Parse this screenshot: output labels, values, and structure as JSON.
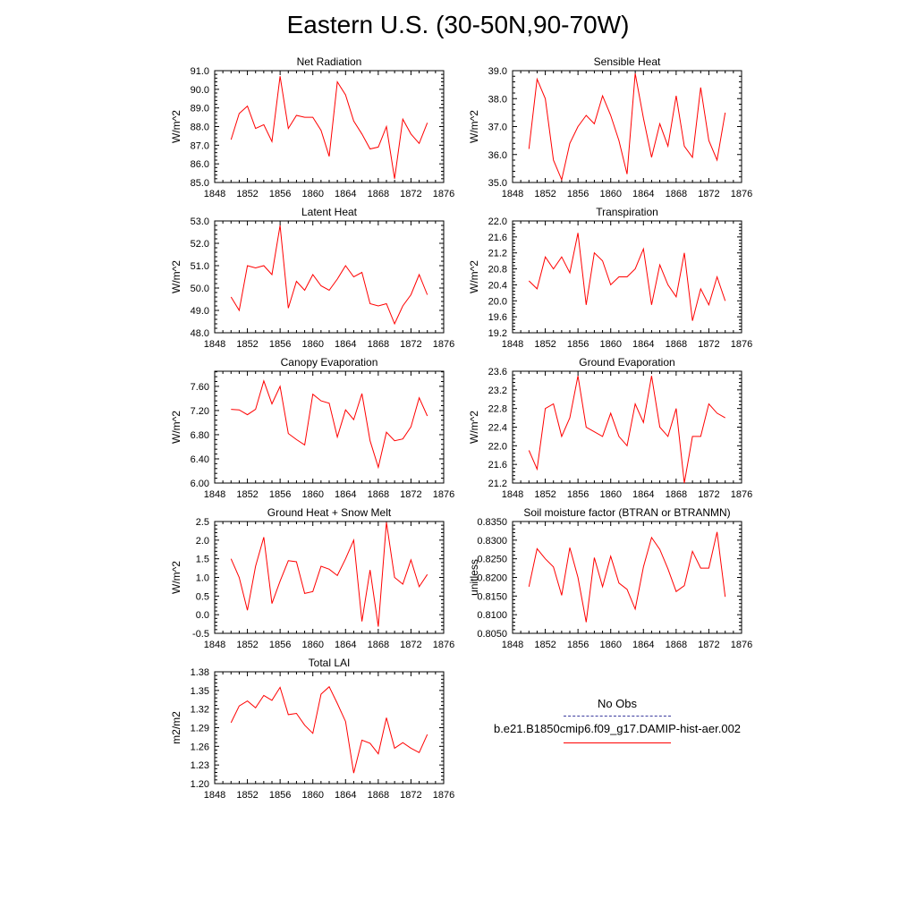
{
  "title": "Eastern U.S. (30-50N,90-70W)",
  "colors": {
    "model": "#ff0000",
    "obs": "#3b3b9e",
    "axis": "#000000"
  },
  "legend": {
    "obs_label": "No Obs",
    "model_label": "b.e21.B1850cmip6.f09_g17.DAMIP-hist-aer.002"
  },
  "chart_data": [
    {
      "type": "line",
      "title": "Net Radiation",
      "ylabel": "W/m^2",
      "xlim": [
        1848,
        1876
      ],
      "xticks": [
        "1848",
        "1852",
        "1856",
        "1860",
        "1864",
        "1868",
        "1872",
        "1876"
      ],
      "ylim": [
        85.0,
        91.0
      ],
      "yticks": [
        "85.0",
        "86.0",
        "87.0",
        "88.0",
        "89.0",
        "90.0",
        "91.0"
      ],
      "x": [
        1850,
        1851,
        1852,
        1853,
        1854,
        1855,
        1856,
        1857,
        1858,
        1859,
        1860,
        1861,
        1862,
        1863,
        1864,
        1865,
        1866,
        1867,
        1868,
        1869,
        1870,
        1871,
        1872,
        1873,
        1874
      ],
      "series": [
        {
          "values": [
            87.3,
            88.7,
            89.1,
            87.9,
            88.1,
            87.2,
            90.7,
            87.9,
            88.6,
            88.5,
            88.5,
            87.8,
            86.4,
            90.4,
            89.7,
            88.3,
            87.6,
            86.8,
            86.9,
            88.0,
            85.2,
            88.4,
            87.6,
            87.1,
            88.2
          ]
        }
      ]
    },
    {
      "type": "line",
      "title": "Sensible Heat",
      "ylabel": "W/m^2",
      "xlim": [
        1848,
        1876
      ],
      "xticks": [
        "1848",
        "1852",
        "1856",
        "1860",
        "1864",
        "1868",
        "1872",
        "1876"
      ],
      "ylim": [
        35.0,
        39.0
      ],
      "yticks": [
        "35.0",
        "36.0",
        "37.0",
        "38.0",
        "39.0"
      ],
      "x": [
        1850,
        1851,
        1852,
        1853,
        1854,
        1855,
        1856,
        1857,
        1858,
        1859,
        1860,
        1861,
        1862,
        1863,
        1864,
        1865,
        1866,
        1867,
        1868,
        1869,
        1870,
        1871,
        1872,
        1873,
        1874
      ],
      "series": [
        {
          "values": [
            36.2,
            38.7,
            38.0,
            35.8,
            35.1,
            36.4,
            37.0,
            37.4,
            37.1,
            38.1,
            37.4,
            36.5,
            35.3,
            38.9,
            37.3,
            35.9,
            37.1,
            36.3,
            38.1,
            36.3,
            35.9,
            38.4,
            36.5,
            35.8,
            37.5
          ]
        }
      ]
    },
    {
      "type": "line",
      "title": "Latent Heat",
      "ylabel": "W/m^2",
      "xlim": [
        1848,
        1876
      ],
      "xticks": [
        "1848",
        "1852",
        "1856",
        "1860",
        "1864",
        "1868",
        "1872",
        "1876"
      ],
      "ylim": [
        48.0,
        53.0
      ],
      "yticks": [
        "48.0",
        "49.0",
        "50.0",
        "51.0",
        "52.0",
        "53.0"
      ],
      "x": [
        1850,
        1851,
        1852,
        1853,
        1854,
        1855,
        1856,
        1857,
        1858,
        1859,
        1860,
        1861,
        1862,
        1863,
        1864,
        1865,
        1866,
        1867,
        1868,
        1869,
        1870,
        1871,
        1872,
        1873,
        1874
      ],
      "series": [
        {
          "values": [
            49.6,
            49.0,
            51.0,
            50.9,
            51.0,
            50.6,
            52.8,
            49.1,
            50.3,
            49.9,
            50.6,
            50.1,
            49.9,
            50.4,
            51.0,
            50.5,
            50.7,
            49.3,
            49.2,
            49.3,
            48.4,
            49.2,
            49.7,
            50.6,
            49.7
          ]
        }
      ]
    },
    {
      "type": "line",
      "title": "Transpiration",
      "ylabel": "W/m^2",
      "xlim": [
        1848,
        1876
      ],
      "xticks": [
        "1848",
        "1852",
        "1856",
        "1860",
        "1864",
        "1868",
        "1872",
        "1876"
      ],
      "ylim": [
        19.2,
        22.0
      ],
      "yticks": [
        "19.2",
        "19.6",
        "20.0",
        "20.4",
        "20.8",
        "21.2",
        "21.6",
        "22.0"
      ],
      "x": [
        1850,
        1851,
        1852,
        1853,
        1854,
        1855,
        1856,
        1857,
        1858,
        1859,
        1860,
        1861,
        1862,
        1863,
        1864,
        1865,
        1866,
        1867,
        1868,
        1869,
        1870,
        1871,
        1872,
        1873,
        1874
      ],
      "series": [
        {
          "values": [
            20.5,
            20.3,
            21.1,
            20.8,
            21.1,
            20.7,
            21.7,
            19.9,
            21.2,
            21.0,
            20.4,
            20.6,
            20.6,
            20.8,
            21.3,
            19.9,
            20.9,
            20.4,
            20.1,
            21.2,
            19.5,
            20.3,
            19.9,
            20.6,
            20.0
          ]
        }
      ]
    },
    {
      "type": "line",
      "title": "Canopy Evaporation",
      "ylabel": "W/m^2",
      "xlim": [
        1848,
        1876
      ],
      "xticks": [
        "1848",
        "1852",
        "1856",
        "1860",
        "1864",
        "1868",
        "1872",
        "1876"
      ],
      "ylim": [
        6.0,
        7.85
      ],
      "yticks": [
        "6.00",
        "6.40",
        "6.80",
        "7.20",
        "7.60"
      ],
      "x": [
        1850,
        1851,
        1852,
        1853,
        1854,
        1855,
        1856,
        1857,
        1858,
        1859,
        1860,
        1861,
        1862,
        1863,
        1864,
        1865,
        1866,
        1867,
        1868,
        1869,
        1870,
        1871,
        1872,
        1873,
        1874
      ],
      "series": [
        {
          "values": [
            7.22,
            7.21,
            7.13,
            7.22,
            7.69,
            7.31,
            7.6,
            6.82,
            6.72,
            6.63,
            7.47,
            7.36,
            7.32,
            6.76,
            7.21,
            7.05,
            7.48,
            6.7,
            6.26,
            6.84,
            6.7,
            6.73,
            6.93,
            7.41,
            7.11
          ]
        }
      ]
    },
    {
      "type": "line",
      "title": "Ground Evaporation",
      "ylabel": "W/m^2",
      "xlim": [
        1848,
        1876
      ],
      "xticks": [
        "1848",
        "1852",
        "1856",
        "1860",
        "1864",
        "1868",
        "1872",
        "1876"
      ],
      "ylim": [
        21.2,
        23.6
      ],
      "yticks": [
        "21.2",
        "21.6",
        "22.0",
        "22.4",
        "22.8",
        "23.2",
        "23.6"
      ],
      "x": [
        1850,
        1851,
        1852,
        1853,
        1854,
        1855,
        1856,
        1857,
        1858,
        1859,
        1860,
        1861,
        1862,
        1863,
        1864,
        1865,
        1866,
        1867,
        1868,
        1869,
        1870,
        1871,
        1872,
        1873,
        1874
      ],
      "series": [
        {
          "values": [
            21.9,
            21.5,
            22.8,
            22.9,
            22.2,
            22.6,
            23.5,
            22.4,
            22.3,
            22.2,
            22.7,
            22.2,
            22.0,
            22.9,
            22.5,
            23.5,
            22.4,
            22.2,
            22.8,
            21.2,
            22.2,
            22.2,
            22.9,
            22.7,
            22.6
          ]
        }
      ]
    },
    {
      "type": "line",
      "title": "Ground Heat + Snow Melt",
      "ylabel": "W/m^2",
      "xlim": [
        1848,
        1876
      ],
      "xticks": [
        "1848",
        "1852",
        "1856",
        "1860",
        "1864",
        "1868",
        "1872",
        "1876"
      ],
      "ylim": [
        -0.5,
        2.5
      ],
      "yticks": [
        "-0.5",
        "0.0",
        "0.5",
        "1.0",
        "1.5",
        "2.0",
        "2.5"
      ],
      "x": [
        1850,
        1851,
        1852,
        1853,
        1854,
        1855,
        1856,
        1857,
        1858,
        1859,
        1860,
        1861,
        1862,
        1863,
        1864,
        1865,
        1866,
        1867,
        1868,
        1869,
        1870,
        1871,
        1872,
        1873,
        1874
      ],
      "series": [
        {
          "values": [
            1.5,
            1.0,
            0.12,
            1.3,
            2.08,
            0.3,
            0.9,
            1.45,
            1.42,
            0.57,
            0.62,
            1.3,
            1.22,
            1.05,
            1.5,
            2.0,
            -0.18,
            1.2,
            -0.32,
            2.48,
            1.0,
            0.82,
            1.47,
            0.75,
            1.08
          ]
        }
      ]
    },
    {
      "type": "line",
      "title": "Soil moisture factor (BTRAN or BTRANMN)",
      "ylabel": "unitless",
      "xlim": [
        1848,
        1876
      ],
      "xticks": [
        "1848",
        "1852",
        "1856",
        "1860",
        "1864",
        "1868",
        "1872",
        "1876"
      ],
      "ylim": [
        0.805,
        0.835
      ],
      "yticks": [
        "0.8050",
        "0.8100",
        "0.8150",
        "0.8200",
        "0.8250",
        "0.8300",
        "0.8350"
      ],
      "x": [
        1850,
        1851,
        1852,
        1853,
        1854,
        1855,
        1856,
        1857,
        1858,
        1859,
        1860,
        1861,
        1862,
        1863,
        1864,
        1865,
        1866,
        1867,
        1868,
        1869,
        1870,
        1871,
        1872,
        1873,
        1874
      ],
      "series": [
        {
          "values": [
            0.8175,
            0.8277,
            0.825,
            0.8228,
            0.8152,
            0.828,
            0.82,
            0.808,
            0.8253,
            0.8175,
            0.8257,
            0.8185,
            0.8168,
            0.8115,
            0.8228,
            0.8307,
            0.8275,
            0.8223,
            0.8162,
            0.8178,
            0.827,
            0.8225,
            0.8225,
            0.8322,
            0.8148
          ]
        }
      ]
    },
    {
      "type": "line",
      "title": "Total LAI",
      "ylabel": "m2/m2",
      "xlim": [
        1848,
        1876
      ],
      "xticks": [
        "1848",
        "1852",
        "1856",
        "1860",
        "1864",
        "1868",
        "1872",
        "1876"
      ],
      "ylim": [
        1.2,
        1.38
      ],
      "yticks": [
        "1.20",
        "1.23",
        "1.26",
        "1.29",
        "1.32",
        "1.35",
        "1.38"
      ],
      "x": [
        1850,
        1851,
        1852,
        1853,
        1854,
        1855,
        1856,
        1857,
        1858,
        1859,
        1860,
        1861,
        1862,
        1863,
        1864,
        1865,
        1866,
        1867,
        1868,
        1869,
        1870,
        1871,
        1872,
        1873,
        1874
      ],
      "series": [
        {
          "values": [
            1.298,
            1.325,
            1.333,
            1.322,
            1.342,
            1.334,
            1.355,
            1.311,
            1.313,
            1.294,
            1.281,
            1.344,
            1.356,
            1.329,
            1.3,
            1.217,
            1.27,
            1.265,
            1.248,
            1.306,
            1.257,
            1.266,
            1.257,
            1.25,
            1.279
          ]
        }
      ]
    }
  ]
}
